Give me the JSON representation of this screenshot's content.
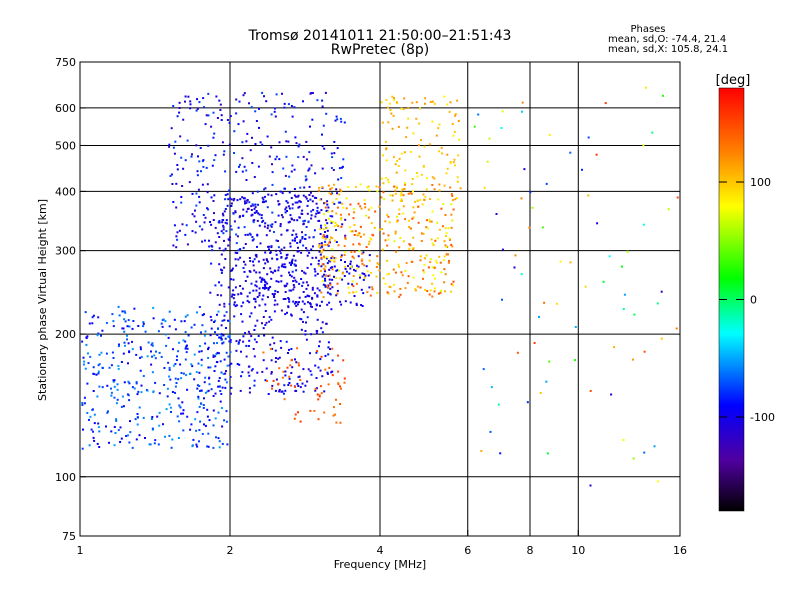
{
  "chart_data": {
    "type": "scatter",
    "title": "Tromsø 20141011 21:50:00–21:51:43",
    "subtitle": "RwPretec (8p)",
    "xlabel": "Frequency [MHz]",
    "ylabel": "Stationary phase Virtual Height [km]",
    "x_scale": "log",
    "y_scale": "log",
    "xlim": [
      1,
      16
    ],
    "ylim": [
      75,
      750
    ],
    "x_ticks": [
      1,
      2,
      4,
      6,
      8,
      10,
      16
    ],
    "x_tick_labels": [
      "1",
      "2",
      "4",
      "6",
      "8",
      "10",
      "16"
    ],
    "y_ticks": [
      75,
      100,
      200,
      300,
      400,
      500,
      600,
      750
    ],
    "y_tick_labels": [
      "75",
      "100",
      "200",
      "300",
      "400",
      "500",
      "600",
      "750"
    ],
    "grid": true,
    "vertical_grid_x": [
      2,
      4,
      6,
      8,
      10
    ],
    "horizontal_grid_y": [
      100,
      200,
      300,
      400,
      500,
      600
    ],
    "stats": {
      "heading": "Phases",
      "o_line": "mean, sd,O: -74.4, 21.4",
      "x_line": "mean, sd,X: 105.8, 24.1"
    },
    "colorbar": {
      "label": "[deg]",
      "range": [
        -180,
        180
      ],
      "ticks": [
        100,
        0,
        -100
      ],
      "tick_labels": [
        "100",
        "0",
        "-100"
      ],
      "colormap": [
        "#000000",
        "#5000a0",
        "#0000ff",
        "#00ffff",
        "#00ff00",
        "#ffff00",
        "#ff8000",
        "#ff0000"
      ]
    },
    "series_clusters": [
      {
        "name": "low cyan/blue band",
        "x_range": [
          1.0,
          2.0
        ],
        "y_range": [
          115,
          230
        ],
        "phase_range": [
          -100,
          -50
        ],
        "count": 420
      },
      {
        "name": "mid blue region",
        "x_range": [
          1.8,
          3.2
        ],
        "y_range": [
          150,
          400
        ],
        "phase_range": [
          -120,
          -80
        ],
        "count": 520
      },
      {
        "name": "upper blue region",
        "x_range": [
          1.5,
          3.4
        ],
        "y_range": [
          300,
          650
        ],
        "phase_range": [
          -120,
          -70
        ],
        "count": 380
      },
      {
        "name": "oblique blue traces",
        "x_range": [
          2.0,
          3.8
        ],
        "y_range": [
          230,
          300
        ],
        "phase_range": [
          -110,
          -90
        ],
        "count": 200
      },
      {
        "name": "orange/yellow F-trace",
        "x_range": [
          3.0,
          5.6
        ],
        "y_range": [
          240,
          420
        ],
        "phase_range": [
          70,
          150
        ],
        "count": 380
      },
      {
        "name": "upper yellow trace",
        "x_range": [
          4.0,
          5.8
        ],
        "y_range": [
          380,
          640
        ],
        "phase_range": [
          80,
          120
        ],
        "count": 120
      },
      {
        "name": "orange lower echoes",
        "x_range": [
          2.3,
          3.4
        ],
        "y_range": [
          130,
          190
        ],
        "phase_range": [
          130,
          160
        ],
        "count": 60
      },
      {
        "name": "sparse high-frequency points",
        "x_range": [
          6.0,
          16.0
        ],
        "y_range": [
          95,
          680
        ],
        "phase_range": [
          -120,
          160
        ],
        "count": 80
      }
    ]
  }
}
